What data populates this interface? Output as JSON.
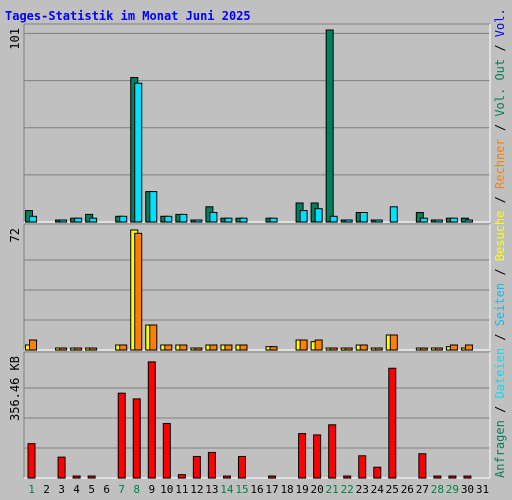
{
  "title": "Tages-Statistik im Monat Juni 2025",
  "colors": {
    "anfragen": "#00805f",
    "dateien": "#00e0ff",
    "seiten": "#00c0ff",
    "besuche": "#ffff00",
    "rechner": "#ff8000",
    "volumen": "#ff0000",
    "vol_in": "#0000ff",
    "vol_out": "#00805f",
    "day_normal": "#000000",
    "day_weekend": "#008040"
  },
  "right_legend": [
    {
      "text": "Anfragen",
      "color": "#00805f"
    },
    {
      "text": " / ",
      "color": "#000000"
    },
    {
      "text": "Dateien",
      "color": "#00e0ff"
    },
    {
      "text": " / ",
      "color": "#000000"
    },
    {
      "text": "Seiten",
      "color": "#00c0ff"
    },
    {
      "text": " / ",
      "color": "#000000"
    },
    {
      "text": "Besuche",
      "color": "#ffff00"
    },
    {
      "text": " / ",
      "color": "#000000"
    },
    {
      "text": "Rechner",
      "color": "#ff8000"
    },
    {
      "text": " / ",
      "color": "#000000"
    },
    {
      "text": "Vol. Out",
      "color": "#00805f"
    },
    {
      "text": " / ",
      "color": "#000000"
    },
    {
      "text": "Vol. In",
      "color": "#0000ff"
    },
    {
      "text": " / ",
      "color": "#000000"
    },
    {
      "text": "Volumen",
      "color": "#ff0000"
    }
  ],
  "chart_data": [
    {
      "type": "bar",
      "name": "hits",
      "ylabel": "101",
      "ymax": 101,
      "x": [
        1,
        2,
        3,
        4,
        5,
        6,
        7,
        8,
        9,
        10,
        11,
        12,
        13,
        14,
        15,
        16,
        17,
        18,
        19,
        20,
        21,
        22,
        23,
        24,
        25,
        26,
        27,
        28,
        29,
        30,
        31
      ],
      "series": [
        {
          "name": "Anfragen",
          "values": [
            6,
            0,
            1,
            2,
            4,
            0,
            3,
            76,
            16,
            3,
            4,
            1,
            8,
            2,
            2,
            0,
            2,
            0,
            10,
            10,
            101,
            1,
            5,
            1,
            0,
            0,
            5,
            1,
            2,
            2,
            0
          ]
        },
        {
          "name": "Dateien",
          "values": [
            3,
            0,
            1,
            2,
            2,
            0,
            3,
            73,
            16,
            3,
            4,
            1,
            5,
            2,
            2,
            0,
            2,
            0,
            6,
            7,
            3,
            1,
            5,
            1,
            8,
            0,
            2,
            1,
            2,
            1,
            0
          ]
        }
      ]
    },
    {
      "type": "bar",
      "name": "visits",
      "ylabel": "72",
      "ymax": 72,
      "x": [
        1,
        2,
        3,
        4,
        5,
        6,
        7,
        8,
        9,
        10,
        11,
        12,
        13,
        14,
        15,
        16,
        17,
        18,
        19,
        20,
        21,
        22,
        23,
        24,
        25,
        26,
        27,
        28,
        29,
        30,
        31
      ],
      "series": [
        {
          "name": "Besuche",
          "values": [
            3,
            0,
            1,
            1,
            1,
            0,
            3,
            72,
            15,
            3,
            3,
            1,
            3,
            3,
            3,
            0,
            2,
            0,
            6,
            5,
            1,
            1,
            3,
            1,
            9,
            0,
            1,
            1,
            2,
            1,
            0
          ]
        },
        {
          "name": "Rechner",
          "values": [
            6,
            0,
            1,
            1,
            1,
            0,
            3,
            70,
            15,
            3,
            3,
            1,
            3,
            3,
            3,
            0,
            2,
            0,
            6,
            6,
            1,
            1,
            3,
            1,
            9,
            0,
            1,
            1,
            3,
            3,
            0
          ]
        }
      ]
    },
    {
      "type": "bar",
      "name": "volume",
      "ylabel": "356.46 KB",
      "ymax": 356.46,
      "x": [
        1,
        2,
        3,
        4,
        5,
        6,
        7,
        8,
        9,
        10,
        11,
        12,
        13,
        14,
        15,
        16,
        17,
        18,
        19,
        20,
        21,
        22,
        23,
        24,
        25,
        26,
        27,
        28,
        29,
        30,
        31
      ],
      "series": [
        {
          "name": "Volumen",
          "values": [
            102,
            0,
            62,
            5,
            5,
            0,
            252,
            235,
            345,
            162,
            10,
            64,
            76,
            5,
            64,
            0,
            5,
            0,
            132,
            128,
            158,
            5,
            66,
            32,
            326,
            0,
            72,
            5,
            5,
            5,
            0
          ]
        }
      ]
    }
  ]
}
